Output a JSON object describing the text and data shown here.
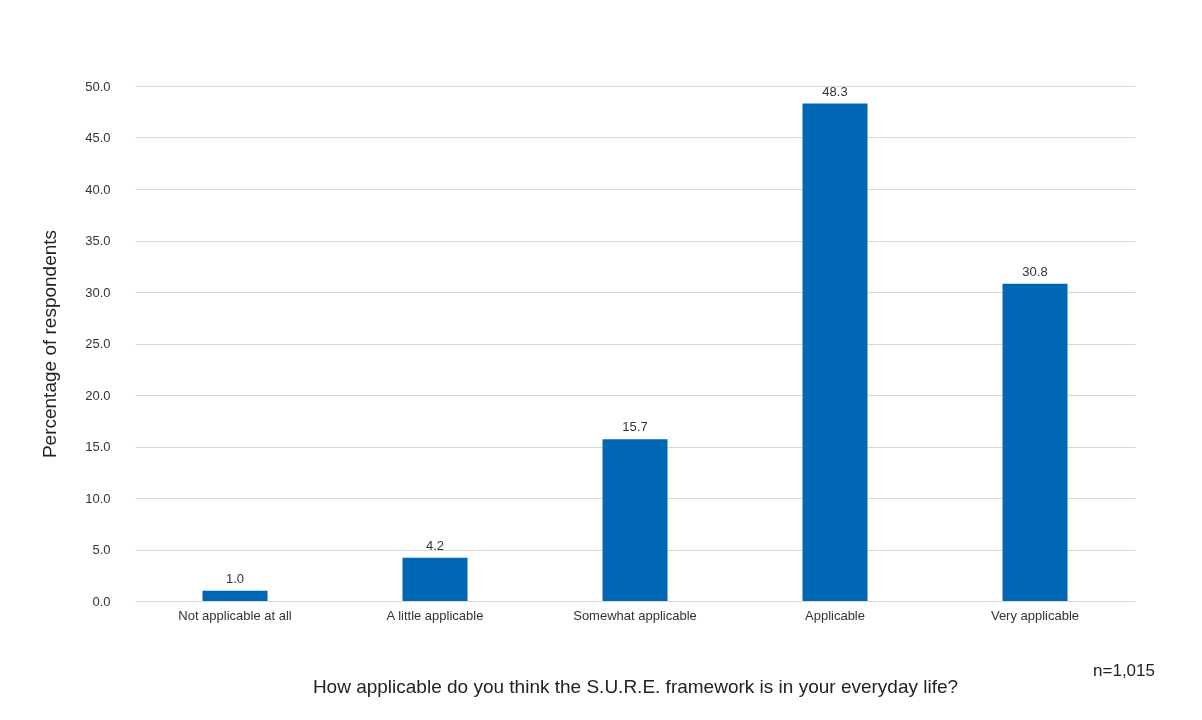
{
  "chart_data": {
    "type": "bar",
    "categories": [
      "Not applicable at all",
      "A little applicable",
      "Somewhat applicable",
      "Applicable",
      "Very applicable"
    ],
    "values": [
      1.0,
      4.2,
      15.7,
      48.3,
      30.8
    ],
    "value_labels": [
      "1.0",
      "4.2",
      "15.7",
      "48.3",
      "30.8"
    ],
    "color": "#0067b5",
    "ylabel": "Percentage of respondents",
    "xlabel": "How applicable do you think the S.U.R.E. framework is in your everyday life?",
    "annotations": [
      "n=1,015"
    ],
    "ylim": [
      0,
      50
    ],
    "yticks": [
      {
        "value": 0,
        "label": "0.0"
      },
      {
        "value": 5,
        "label": "5.0"
      },
      {
        "value": 10,
        "label": "10.0"
      },
      {
        "value": 15,
        "label": "15.0"
      },
      {
        "value": 20,
        "label": "20.0"
      },
      {
        "value": 25,
        "label": "25.0"
      },
      {
        "value": 30,
        "label": "30.0"
      },
      {
        "value": 35,
        "label": "35.0"
      },
      {
        "value": 40,
        "label": "40.0"
      },
      {
        "value": 45,
        "label": "45.0"
      },
      {
        "value": 50,
        "label": "50.0"
      }
    ],
    "grid": "y"
  }
}
